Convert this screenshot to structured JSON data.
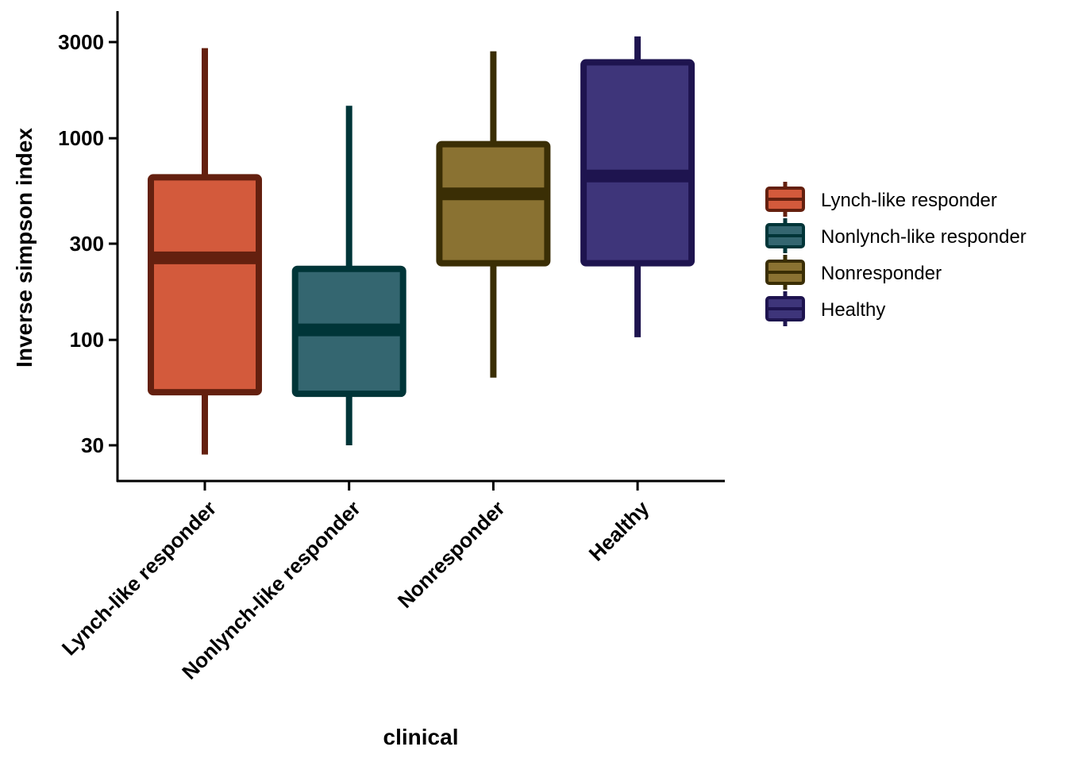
{
  "chart_data": {
    "type": "box",
    "xlabel": "clinical",
    "ylabel": "Inverse simpson index",
    "y_scale": "log",
    "ylim": [
      22,
      3600
    ],
    "y_ticks": [
      30,
      100,
      300,
      1000,
      3000
    ],
    "y_tick_labels": [
      "30",
      "100",
      "300",
      "1000",
      "3000"
    ],
    "categories": [
      "Lynch-like responder",
      "Nonlynch-like responder",
      "Nonresponder",
      "Healthy"
    ],
    "boxes": [
      {
        "category": "Lynch-like responder",
        "whisker_low": 27,
        "q1": 55,
        "median": 255,
        "q3": 640,
        "whisker_high": 2800,
        "fill": "#D35A3C",
        "stroke": "#64200F"
      },
      {
        "category": "Nonlynch-like responder",
        "whisker_low": 30,
        "q1": 54,
        "median": 112,
        "q3": 225,
        "whisker_high": 1450,
        "fill": "#346670",
        "stroke": "#003538"
      },
      {
        "category": "Nonresponder",
        "whisker_low": 65,
        "q1": 240,
        "median": 530,
        "q3": 935,
        "whisker_high": 2700,
        "fill": "#8A7232",
        "stroke": "#3A2E05"
      },
      {
        "category": "Healthy",
        "whisker_low": 103,
        "q1": 240,
        "median": 650,
        "q3": 2380,
        "whisker_high": 3200,
        "fill": "#3E357A",
        "stroke": "#1E144F"
      }
    ],
    "legend": {
      "position": "right",
      "entries": [
        "Lynch-like responder",
        "Nonlynch-like responder",
        "Nonresponder",
        "Healthy"
      ]
    }
  }
}
